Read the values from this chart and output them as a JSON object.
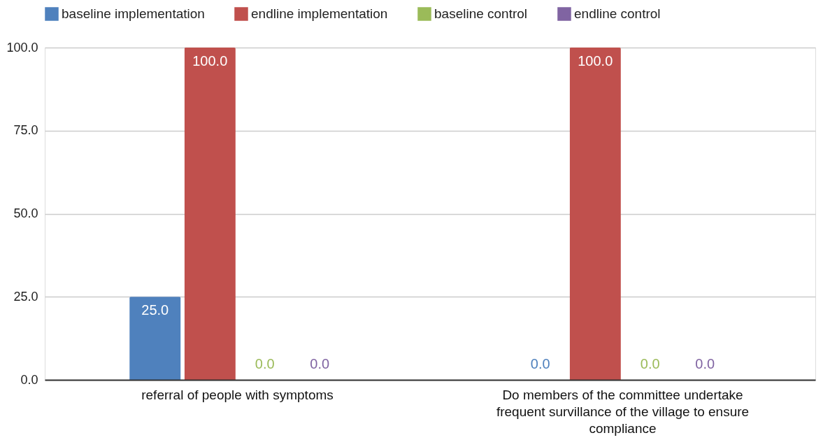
{
  "chart_data": {
    "type": "bar",
    "categories": [
      "referral of people with symptoms",
      "Do members of the committee undertake frequent survillance of the village to ensure compliance"
    ],
    "series": [
      {
        "name": "baseline implementation",
        "color": "#4f81bd",
        "values": [
          25,
          0
        ],
        "value_labels": [
          "25.0",
          "0.0"
        ]
      },
      {
        "name": "endline implementation",
        "color": "#c0504d",
        "values": [
          100,
          100
        ],
        "value_labels": [
          "100.0",
          "100.0"
        ]
      },
      {
        "name": "baseline control",
        "color": "#9bbb59",
        "values": [
          0,
          0
        ],
        "value_labels": [
          "0.0",
          "0.0"
        ]
      },
      {
        "name": "endline control",
        "color": "#8064a2",
        "values": [
          0,
          0
        ],
        "value_labels": [
          "0.0",
          "0.0"
        ]
      }
    ],
    "ylim": [
      0,
      100
    ],
    "yticks": [
      {
        "value": 0,
        "label": "0.0"
      },
      {
        "value": 25,
        "label": "25.0"
      },
      {
        "value": 50,
        "label": "50.0"
      },
      {
        "value": 75,
        "label": "75.0"
      },
      {
        "value": 100,
        "label": "100.0"
      }
    ],
    "grid": "y",
    "legend": "top"
  }
}
